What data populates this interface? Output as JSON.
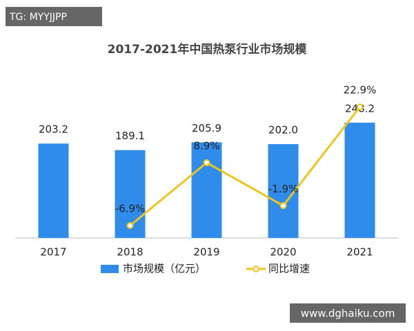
{
  "watermark_top": "TG: MYYJJPP",
  "watermark_bottom": "www.dghaiku.com",
  "chart_data": {
    "type": "bar-line",
    "title": "2017-2021年中国热泵行业市场规模",
    "categories": [
      "2017",
      "2018",
      "2019",
      "2020",
      "2021"
    ],
    "series": [
      {
        "name": "市场规模（亿元）",
        "type": "bar",
        "color": "#2f8ceb",
        "values": [
          203.2,
          189.1,
          205.9,
          202.0,
          248.2
        ],
        "value_labels": [
          "203.2",
          "189.1",
          "205.9",
          "202.0",
          "248.2"
        ]
      },
      {
        "name": "同比增速",
        "type": "line",
        "axis": "y2",
        "color": "#f0c419",
        "values": [
          null,
          -6.9,
          8.9,
          -1.9,
          22.9
        ],
        "value_labels": [
          null,
          "-6.9%",
          "8.9%",
          "-1.9%",
          "22.9%"
        ]
      }
    ],
    "ylim": [
      0,
      300
    ],
    "y2lim": [
      -10,
      25
    ]
  }
}
